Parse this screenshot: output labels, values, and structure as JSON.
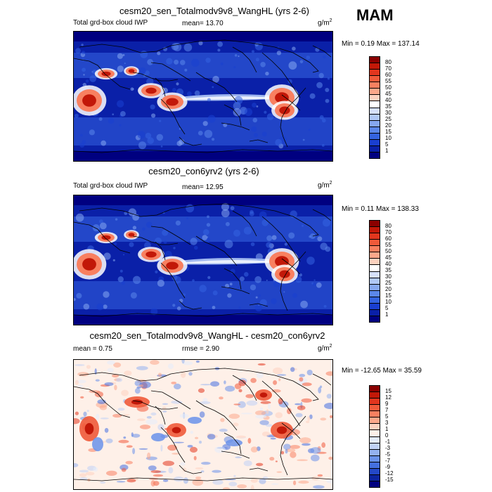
{
  "season": "MAM",
  "panels": [
    {
      "title": "cesm20_sen_Totalmodv9v8_WangHL (yrs 2-6)",
      "left_label": "Total grd-box cloud IWP",
      "mean_text": "mean=  13.70",
      "rmse_text": "",
      "unit_base": "g/m",
      "unit_exp": "2",
      "minmax": "Min =   0.19 Max = 137.14",
      "levels": [
        "80",
        "70",
        "60",
        "55",
        "50",
        "45",
        "40",
        "35",
        "30",
        "25",
        "20",
        "15",
        "10",
        "5",
        "1"
      ],
      "colors": [
        "#8b0000",
        "#c21808",
        "#e2361e",
        "#f05a3a",
        "#f88060",
        "#fca88a",
        "#fdd2bf",
        "#ffffff",
        "#d6e1fb",
        "#b0c8f6",
        "#86a8f0",
        "#5b87ea",
        "#3463e0",
        "#1a3fd0",
        "#0a20a8",
        "#000080"
      ],
      "style": "abs"
    },
    {
      "title": "cesm20_con6yrv2 (yrs 2-6)",
      "left_label": "Total grd-box cloud IWP",
      "mean_text": "mean=  12.95",
      "rmse_text": "",
      "unit_base": "g/m",
      "unit_exp": "2",
      "minmax": "Min =   0.11 Max = 138.33",
      "levels": [
        "80",
        "70",
        "60",
        "55",
        "50",
        "45",
        "40",
        "35",
        "30",
        "25",
        "20",
        "15",
        "10",
        "5",
        "1"
      ],
      "colors": [
        "#8b0000",
        "#c21808",
        "#e2361e",
        "#f05a3a",
        "#f88060",
        "#fca88a",
        "#fdd2bf",
        "#ffffff",
        "#d6e1fb",
        "#b0c8f6",
        "#86a8f0",
        "#5b87ea",
        "#3463e0",
        "#1a3fd0",
        "#0a20a8",
        "#000080"
      ],
      "style": "abs"
    },
    {
      "title": "cesm20_sen_Totalmodv9v8_WangHL - cesm20_con6yrv2",
      "left_label": "",
      "mean_text": "mean =   0.75",
      "rmse_text": "rmse =   2.90",
      "unit_base": "g/m",
      "unit_exp": "2",
      "minmax": "Min = -12.65 Max =  35.59",
      "levels": [
        "15",
        "12",
        "9",
        "7",
        "5",
        "3",
        "1",
        "0",
        "-1",
        "-3",
        "-5",
        "-7",
        "-9",
        "-12",
        "-15"
      ],
      "colors": [
        "#8b0000",
        "#c21808",
        "#e2361e",
        "#f05a3a",
        "#f88060",
        "#fca88a",
        "#fdd2bf",
        "#fef0e8",
        "#e4ecfb",
        "#c0d2f6",
        "#94b2f0",
        "#6a92ea",
        "#4470e0",
        "#2448c8",
        "#0c24a0",
        "#000080"
      ],
      "style": "diff"
    }
  ]
}
